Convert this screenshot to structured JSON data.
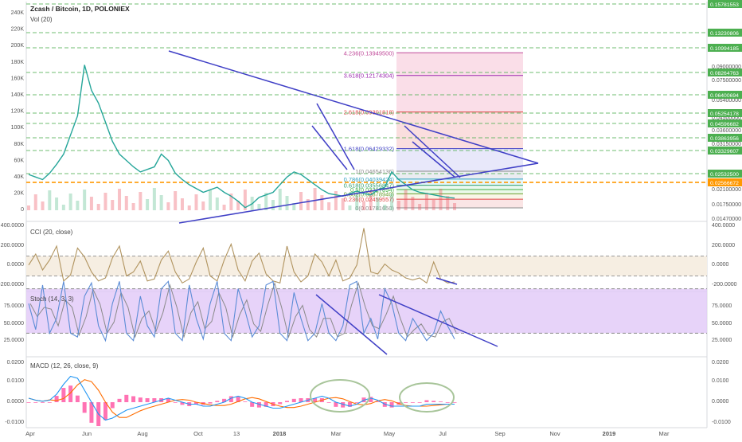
{
  "header": {
    "title": "Zcash / Bitcoin, 1D, POLONIEX",
    "volume_label": "Vol (20)"
  },
  "colors": {
    "up": "#53b987",
    "down": "#eb4d5c",
    "price_line": "#26a69a",
    "trendline": "#3f3fc6",
    "orange_level": "#ff9800",
    "green_label": "#4caf50",
    "cci_line": "#b0935e",
    "cci_band": "#f6eee2",
    "stoch_band": "#e1c8f7",
    "stoch_k": "#5b8cd6",
    "stoch_d": "#8a8a8a",
    "macd_line": "#2196f3",
    "signal_line": "#ff6d00",
    "histogram": "#ff4fa0",
    "ellipse": "#a8c59a"
  },
  "chart_data": [
    {
      "type": "line",
      "pane": "price",
      "title": "Zcash / Bitcoin, 1D, POLONIEX",
      "x_axis": [
        "Apr",
        "Jun",
        "Aug",
        "Oct",
        "13",
        "2018",
        "Mar",
        "May",
        "Jul",
        "Sep",
        "Nov",
        "2019",
        "Mar"
      ],
      "left_axis_ticks": [
        "240K",
        "220K",
        "200K",
        "180K",
        "160K",
        "140K",
        "120K",
        "100K",
        "80K",
        "60K",
        "40K",
        "20K",
        "0"
      ],
      "right_axis_ticks": [
        "0.09000000",
        "0.07500000",
        "0.05400000",
        "0.04500000",
        "0.03600000",
        "0.03150000",
        "0.02100000",
        "0.01750000",
        "0.01470000"
      ],
      "price_labels": [
        {
          "value": "0.15781553",
          "color": "green"
        },
        {
          "value": "0.13230806",
          "color": "green"
        },
        {
          "value": "0.10994185",
          "color": "green"
        },
        {
          "value": "0.08264763",
          "color": "green"
        },
        {
          "value": "0.06400694",
          "color": "green"
        },
        {
          "value": "0.05254178",
          "color": "green"
        },
        {
          "value": "0.04596682",
          "color": "green"
        },
        {
          "value": "0.03863956",
          "color": "green"
        },
        {
          "value": "0.03329607",
          "color": "green"
        },
        {
          "value": "0.02532500",
          "color": "green"
        },
        {
          "value": "0.02566672",
          "color": "orange"
        }
      ],
      "fib_levels": [
        {
          "label": "4.236(0.13949500)",
          "value": 0.139495
        },
        {
          "label": "3.618(0.12174304)",
          "value": 0.12174304
        },
        {
          "label": "2.618(0.09301818)",
          "value": 0.09301818
        },
        {
          "label": "1.618(0.06429332)",
          "value": 0.06429332
        },
        {
          "label": "1(0.04654136)",
          "value": 0.04654136
        },
        {
          "label": "0.786(0.04039424)",
          "value": 0.04039424
        },
        {
          "label": "0.618(0.03556847)",
          "value": 0.03556847
        },
        {
          "label": "0.5(0.03217894)",
          "value": 0.03217894
        },
        {
          "label": "0.382(0.02878940)",
          "value": 0.0287894
        },
        {
          "label": "0.236(0.02459557)",
          "value": 0.02459557
        },
        {
          "label": "0(0.01781650)",
          "value": 0.0178165
        }
      ],
      "close_series": [
        0.044,
        0.042,
        0.04,
        0.045,
        0.052,
        0.06,
        0.075,
        0.09,
        0.13,
        0.11,
        0.1,
        0.085,
        0.07,
        0.06,
        0.055,
        0.05,
        0.046,
        0.048,
        0.05,
        0.06,
        0.055,
        0.045,
        0.04,
        0.036,
        0.033,
        0.03,
        0.032,
        0.034,
        0.03,
        0.027,
        0.023,
        0.018,
        0.021,
        0.026,
        0.028,
        0.03,
        0.036,
        0.042,
        0.046,
        0.044,
        0.04,
        0.036,
        0.032,
        0.029,
        0.028,
        0.027,
        0.029,
        0.031,
        0.029,
        0.028,
        0.032,
        0.034,
        0.046,
        0.04,
        0.036,
        0.032,
        0.03,
        0.029,
        0.028,
        0.027,
        0.026,
        0.0255
      ]
    },
    {
      "type": "line",
      "pane": "cci",
      "title": "CCI (20, close)",
      "ticks": [
        "400.0000",
        "200.0000",
        "0.0000",
        "-200.0000"
      ],
      "band": [
        -100,
        100
      ],
      "values": [
        10,
        120,
        -40,
        60,
        200,
        -150,
        -90,
        180,
        90,
        -60,
        -150,
        -120,
        80,
        200,
        -100,
        -60,
        50,
        -150,
        -130,
        60,
        150,
        -60,
        -170,
        -130,
        40,
        180,
        -100,
        -150,
        60,
        220,
        -40,
        -150,
        50,
        130,
        -80,
        -150,
        -170,
        200,
        -60,
        -160,
        -100,
        120,
        40,
        -100,
        60,
        -150,
        -120,
        10,
        380,
        -60,
        -80,
        20,
        -40,
        -70,
        -120,
        -140,
        -120,
        -170,
        40,
        -130,
        -170,
        -160
      ]
    },
    {
      "type": "line",
      "pane": "stoch",
      "title": "Stoch (14, 3, 3)",
      "ticks": [
        "75.0000",
        "50.0000",
        "25.0000"
      ],
      "band": [
        20,
        80
      ],
      "k_values": [
        60,
        25,
        85,
        20,
        40,
        90,
        20,
        15,
        70,
        88,
        30,
        10,
        60,
        90,
        20,
        10,
        70,
        30,
        15,
        80,
        90,
        20,
        10,
        85,
        40,
        12,
        60,
        90,
        20,
        10,
        80,
        50,
        15,
        30,
        85,
        90,
        20,
        10,
        75,
        40,
        10,
        20,
        60,
        20,
        10,
        30,
        85,
        90,
        20,
        40,
        12,
        80,
        60,
        20,
        10,
        40,
        25,
        10,
        20,
        50,
        30,
        12
      ]
    },
    {
      "type": "line",
      "pane": "macd",
      "title": "MACD (12, 26, close, 9)",
      "ticks": [
        "0.0200",
        "0.0100",
        "0.0000",
        "-0.0100"
      ],
      "macd_values": [
        0.002,
        0.001,
        0.0005,
        0.001,
        0.004,
        0.009,
        0.013,
        0.012,
        0.006,
        0.0,
        -0.006,
        -0.009,
        -0.008,
        -0.006,
        -0.004,
        -0.003,
        -0.002,
        -0.001,
        0.0,
        0.001,
        0.002,
        0.001,
        0.0,
        -0.001,
        -0.001,
        -0.002,
        -0.002,
        -0.001,
        0.0,
        0.002,
        0.003,
        0.002,
        0.0,
        -0.001,
        -0.002,
        -0.003,
        -0.003,
        -0.002,
        -0.001,
        0.0,
        0.001,
        0.002,
        0.003,
        0.002,
        0.0,
        -0.001,
        -0.002,
        -0.001,
        0.001,
        0.002,
        0.001,
        -0.001,
        -0.002,
        -0.002,
        -0.002,
        -0.002,
        -0.002,
        -0.001,
        -0.001,
        -0.001,
        -0.001,
        -0.001
      ]
    }
  ]
}
